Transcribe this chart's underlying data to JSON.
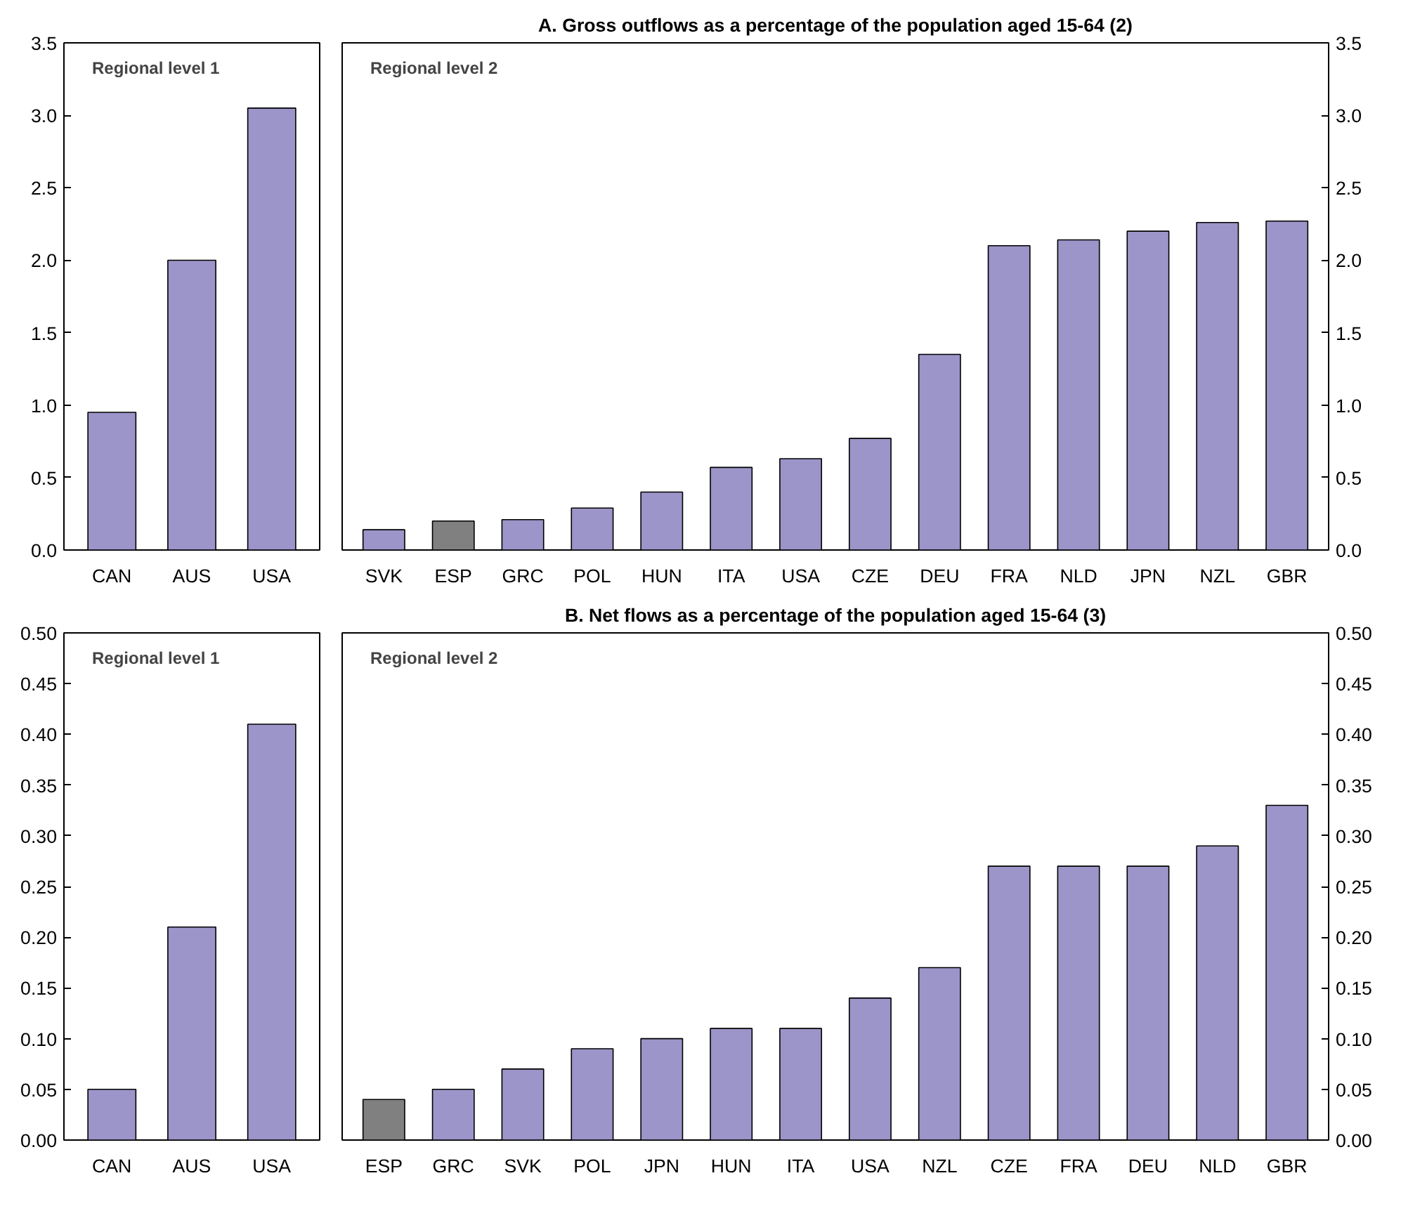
{
  "chart_data": [
    {
      "type": "bar",
      "categories": [
        "CAN",
        "AUS",
        "USA"
      ],
      "series": [
        {
          "values": [
            0.95,
            2.0,
            3.05
          ],
          "colors": [
            "#9b95c9",
            "#9b95c9",
            "#9b95c9"
          ]
        }
      ],
      "ylim": [
        0,
        3.5
      ],
      "yticks": [
        {
          "value": 0,
          "label": "0.0"
        },
        {
          "value": 0.5,
          "label": "0.5"
        },
        {
          "value": 1,
          "label": "1.0"
        },
        {
          "value": 1.5,
          "label": "1.5"
        },
        {
          "value": 2,
          "label": "2.0"
        },
        {
          "value": 2.5,
          "label": "2.5"
        },
        {
          "value": 3,
          "label": "3.0"
        },
        {
          "value": 3.5,
          "label": "3.5"
        }
      ],
      "annotations": [
        "Regional level 1"
      ],
      "grid": false
    },
    {
      "type": "bar",
      "title": "A. Gross outflows as a percentage of the population aged 15-64 (2)",
      "categories": [
        "SVK",
        "ESP",
        "GRC",
        "POL",
        "HUN",
        "ITA",
        "USA",
        "CZE",
        "DEU",
        "FRA",
        "NLD",
        "JPN",
        "NZL",
        "GBR"
      ],
      "series": [
        {
          "axis": "y2",
          "values": [
            0.14,
            0.2,
            0.21,
            0.29,
            0.4,
            0.57,
            0.63,
            0.77,
            1.35,
            2.1,
            2.14,
            2.2,
            2.26,
            2.27
          ],
          "colors": [
            "#9b95c9",
            "#808080",
            "#9b95c9",
            "#9b95c9",
            "#9b95c9",
            "#9b95c9",
            "#9b95c9",
            "#9b95c9",
            "#9b95c9",
            "#9b95c9",
            "#9b95c9",
            "#9b95c9",
            "#9b95c9",
            "#9b95c9"
          ]
        }
      ],
      "y2lim": [
        0,
        3.5
      ],
      "y2ticks": [
        {
          "value": 0,
          "label": "0.0"
        },
        {
          "value": 0.5,
          "label": "0.5"
        },
        {
          "value": 1,
          "label": "1.0"
        },
        {
          "value": 1.5,
          "label": "1.5"
        },
        {
          "value": 2,
          "label": "2.0"
        },
        {
          "value": 2.5,
          "label": "2.5"
        },
        {
          "value": 3,
          "label": "3.0"
        },
        {
          "value": 3.5,
          "label": "3.5"
        }
      ],
      "annotations": [
        "Regional level 2"
      ],
      "grid": false
    },
    {
      "type": "bar",
      "categories": [
        "CAN",
        "AUS",
        "USA"
      ],
      "series": [
        {
          "values": [
            0.05,
            0.21,
            0.41
          ],
          "colors": [
            "#9b95c9",
            "#9b95c9",
            "#9b95c9"
          ]
        }
      ],
      "ylim": [
        0,
        0.5
      ],
      "yticks": [
        {
          "value": 0,
          "label": "0.00"
        },
        {
          "value": 0.05,
          "label": "0.05"
        },
        {
          "value": 0.1,
          "label": "0.10"
        },
        {
          "value": 0.15,
          "label": "0.15"
        },
        {
          "value": 0.2,
          "label": "0.20"
        },
        {
          "value": 0.25,
          "label": "0.25"
        },
        {
          "value": 0.3,
          "label": "0.30"
        },
        {
          "value": 0.35,
          "label": "0.35"
        },
        {
          "value": 0.4,
          "label": "0.40"
        },
        {
          "value": 0.45,
          "label": "0.45"
        },
        {
          "value": 0.5,
          "label": "0.50"
        }
      ],
      "annotations": [
        "Regional level 1"
      ],
      "grid": false
    },
    {
      "type": "bar",
      "title": "B. Net flows as a percentage of the population aged 15-64 (3)",
      "categories": [
        "ESP",
        "GRC",
        "SVK",
        "POL",
        "JPN",
        "HUN",
        "ITA",
        "USA",
        "NZL",
        "CZE",
        "FRA",
        "DEU",
        "NLD",
        "GBR"
      ],
      "series": [
        {
          "axis": "y2",
          "values": [
            0.04,
            0.05,
            0.07,
            0.09,
            0.1,
            0.11,
            0.11,
            0.14,
            0.17,
            0.27,
            0.27,
            0.27,
            0.29,
            0.33
          ],
          "colors": [
            "#808080",
            "#9b95c9",
            "#9b95c9",
            "#9b95c9",
            "#9b95c9",
            "#9b95c9",
            "#9b95c9",
            "#9b95c9",
            "#9b95c9",
            "#9b95c9",
            "#9b95c9",
            "#9b95c9",
            "#9b95c9",
            "#9b95c9"
          ]
        }
      ],
      "y2lim": [
        0,
        0.5
      ],
      "y2ticks": [
        {
          "value": 0,
          "label": "0.00"
        },
        {
          "value": 0.05,
          "label": "0.05"
        },
        {
          "value": 0.1,
          "label": "0.10"
        },
        {
          "value": 0.15,
          "label": "0.15"
        },
        {
          "value": 0.2,
          "label": "0.20"
        },
        {
          "value": 0.25,
          "label": "0.25"
        },
        {
          "value": 0.3,
          "label": "0.30"
        },
        {
          "value": 0.35,
          "label": "0.35"
        },
        {
          "value": 0.4,
          "label": "0.40"
        },
        {
          "value": 0.45,
          "label": "0.45"
        },
        {
          "value": 0.5,
          "label": "0.50"
        }
      ],
      "annotations": [
        "Regional level 2"
      ],
      "grid": false
    }
  ]
}
